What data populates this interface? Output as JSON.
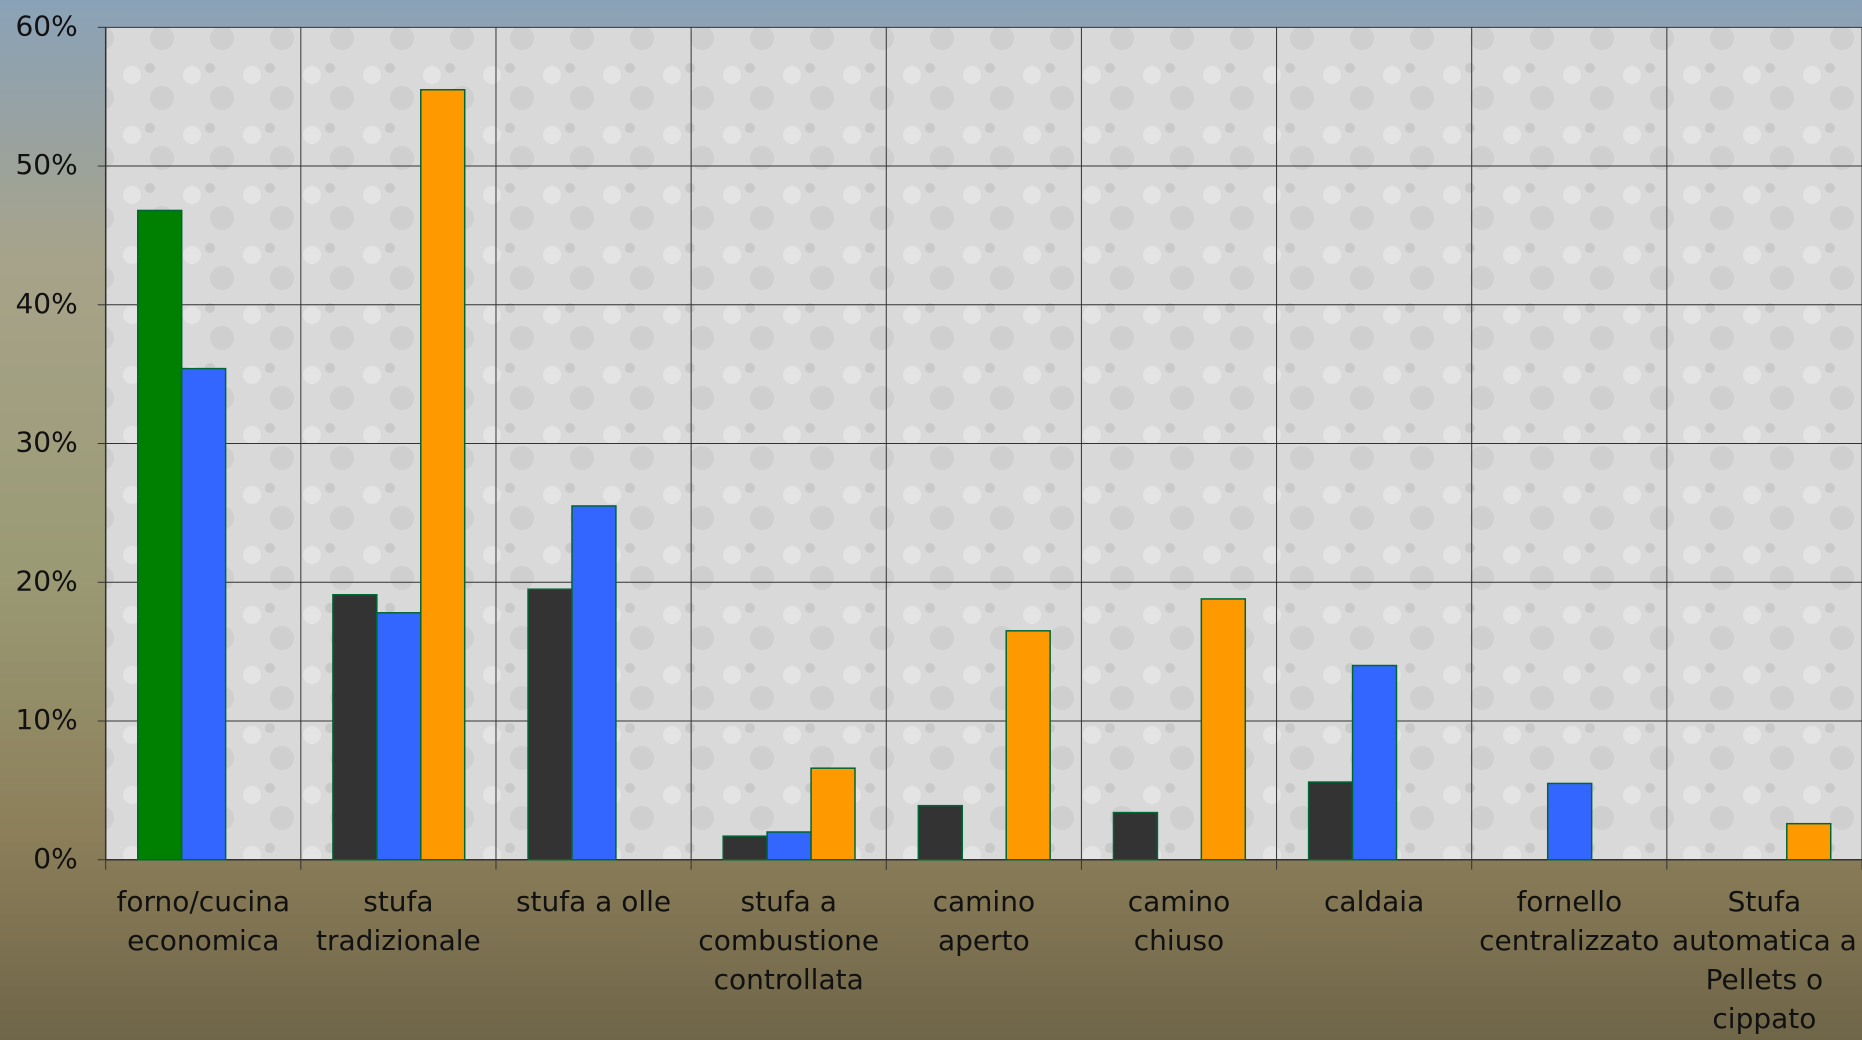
{
  "chart_data": {
    "type": "bar",
    "categories": [
      "forno/cucina economica",
      "stufa tradizionale",
      "stufa a olle",
      "stufa a combustione controllata",
      "camino aperto",
      "camino chiuso",
      "caldaia",
      "fornello centralizzato",
      "Stufa automatica a Pellets o cippato"
    ],
    "series": [
      {
        "color": "#333333",
        "colors": [
          "#008000",
          "#333333",
          "#333333",
          "#333333",
          "#333333",
          "#333333",
          "#333333",
          "#333333",
          "#333333"
        ],
        "values": [
          46.8,
          19.1,
          19.5,
          1.7,
          3.9,
          3.4,
          5.6,
          null,
          null
        ]
      },
      {
        "color": "#3366ff",
        "values": [
          35.4,
          17.8,
          25.5,
          2.0,
          null,
          null,
          14.0,
          5.5,
          null
        ]
      },
      {
        "color": "#ff9900",
        "values": [
          null,
          55.5,
          null,
          6.6,
          16.5,
          18.8,
          null,
          null,
          2.6
        ]
      }
    ],
    "ylim": [
      0,
      60
    ],
    "yticks": [
      {
        "value": 0,
        "label": "0%"
      },
      {
        "value": 10,
        "label": "10%"
      },
      {
        "value": 20,
        "label": "20%"
      },
      {
        "value": 30,
        "label": "30%"
      },
      {
        "value": 40,
        "label": "40%"
      },
      {
        "value": 50,
        "label": "50%"
      },
      {
        "value": 60,
        "label": "60%"
      }
    ],
    "grid": true
  }
}
